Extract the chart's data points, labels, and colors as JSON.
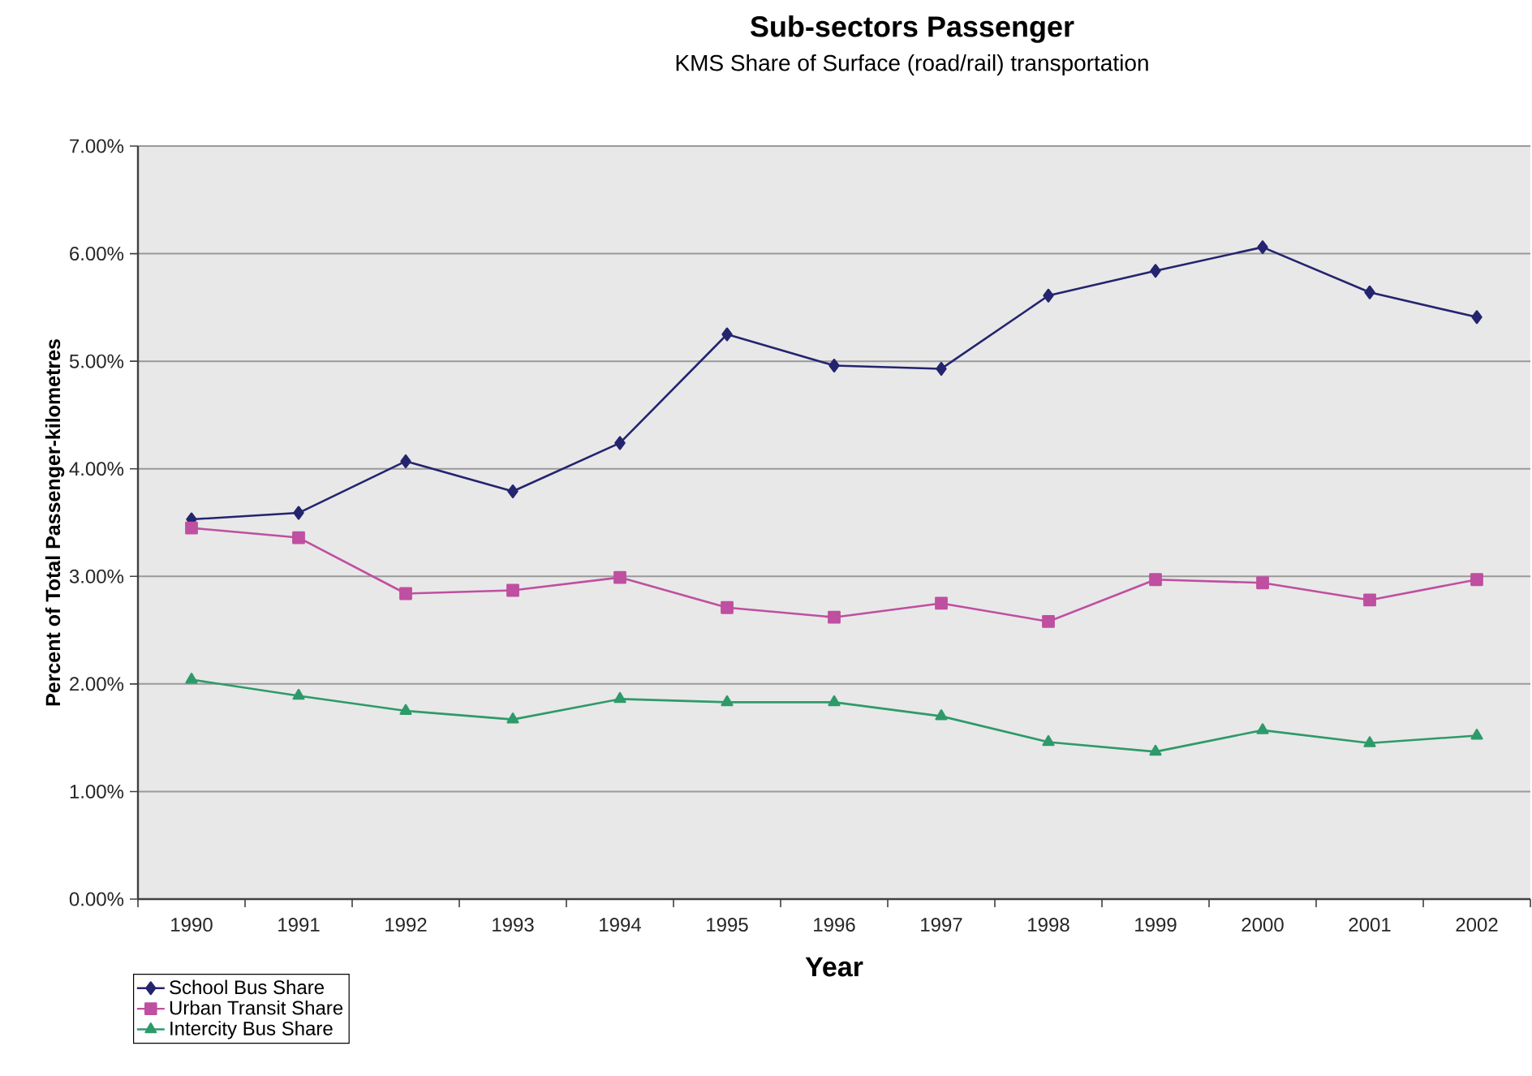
{
  "chart_data": {
    "type": "line",
    "title": "Sub-sectors Passenger",
    "subtitle": "KMS Share of Surface (road/rail) transportation",
    "xlabel": "Year",
    "ylabel": "Percent of Total Passenger-kilometres",
    "categories": [
      "1990",
      "1991",
      "1992",
      "1993",
      "1994",
      "1995",
      "1996",
      "1997",
      "1998",
      "1999",
      "2000",
      "2001",
      "2002"
    ],
    "series": [
      {
        "name": "School Bus Share",
        "color": "#24246f",
        "marker": "diamond",
        "values": [
          3.53,
          3.59,
          4.07,
          3.79,
          4.24,
          5.25,
          4.96,
          4.93,
          5.61,
          5.84,
          6.06,
          5.64,
          5.41
        ]
      },
      {
        "name": "Urban Transit Share",
        "color": "#bf4fa0",
        "marker": "square",
        "values": [
          3.45,
          3.36,
          2.84,
          2.87,
          2.99,
          2.71,
          2.62,
          2.75,
          2.58,
          2.97,
          2.94,
          2.78,
          2.97
        ]
      },
      {
        "name": "Intercity Bus Share",
        "color": "#2e9a6a",
        "marker": "triangle",
        "values": [
          2.04,
          1.89,
          1.75,
          1.67,
          1.86,
          1.83,
          1.83,
          1.7,
          1.46,
          1.37,
          1.57,
          1.45,
          1.52
        ]
      }
    ],
    "ylim": [
      0,
      7
    ],
    "yticks": [
      {
        "value": 0,
        "label": "0.00%"
      },
      {
        "value": 1,
        "label": "1.00%"
      },
      {
        "value": 2,
        "label": "2.00%"
      },
      {
        "value": 3,
        "label": "3.00%"
      },
      {
        "value": 4,
        "label": "4.00%"
      },
      {
        "value": 5,
        "label": "5.00%"
      },
      {
        "value": 6,
        "label": "6.00%"
      },
      {
        "value": 7,
        "label": "7.00%"
      }
    ],
    "grid": "y",
    "legend": "bottom left"
  }
}
